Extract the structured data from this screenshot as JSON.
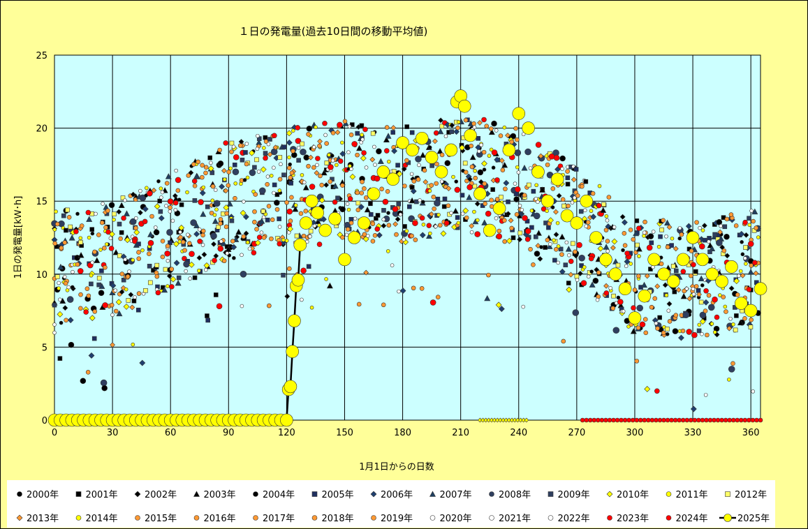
{
  "chart_data": {
    "type": "scatter",
    "title": "１日の発電量(過去10日間の移動平均値)",
    "xlabel": "1月1日からの日数",
    "ylabel": "1日の発電量[kＷ･h]",
    "xlim": [
      0,
      365
    ],
    "ylim": [
      0,
      25
    ],
    "x_ticks": [
      0,
      30,
      60,
      90,
      120,
      150,
      180,
      210,
      240,
      270,
      300,
      330,
      360
    ],
    "y_ticks": [
      0,
      5,
      10,
      15,
      20,
      25
    ],
    "grid": true,
    "plot_background": "#ccffff",
    "page_background": "#ffff99",
    "legend_position": "bottom",
    "series": [
      {
        "name": "2000年",
        "marker": "circle",
        "color": "#000000",
        "size": 4
      },
      {
        "name": "2001年",
        "marker": "square",
        "color": "#000000",
        "size": 3
      },
      {
        "name": "2002年",
        "marker": "diamond",
        "color": "#000000",
        "size": 3
      },
      {
        "name": "2003年",
        "marker": "triangle",
        "color": "#000000",
        "size": 3.5
      },
      {
        "name": "2004年",
        "marker": "circle",
        "color": "#000000",
        "size": 2.5
      },
      {
        "name": "2005年",
        "marker": "square",
        "color": "#1f2f5f",
        "size": 3
      },
      {
        "name": "2006年",
        "marker": "diamond",
        "color": "#1f3f6f",
        "size": 3.5
      },
      {
        "name": "2007年",
        "marker": "triangle",
        "color": "#1f3f5f",
        "size": 3.5
      },
      {
        "name": "2008年",
        "marker": "circle",
        "color": "#2f3f5f",
        "size": 4.5
      },
      {
        "name": "2009年",
        "marker": "square",
        "color": "#2f3f5f",
        "size": 3
      },
      {
        "name": "2010年",
        "marker": "diamond",
        "color": "#ffff00",
        "size": 3.5
      },
      {
        "name": "2011年",
        "marker": "circle",
        "color": "#ffff00",
        "size": 2.5
      },
      {
        "name": "2012年",
        "marker": "square",
        "color": "#ffff66",
        "size": 3
      },
      {
        "name": "2013年",
        "marker": "diamond",
        "color": "#ff9933",
        "size": 3
      },
      {
        "name": "2014年",
        "marker": "circle",
        "color": "#ffff00",
        "size": 2.5
      },
      {
        "name": "2015年",
        "marker": "circle",
        "color": "#ff9933",
        "size": 3
      },
      {
        "name": "2016年",
        "marker": "circle",
        "color": "#ff9933",
        "size": 3
      },
      {
        "name": "2017年",
        "marker": "circle",
        "color": "#ff9933",
        "size": 3
      },
      {
        "name": "2018年",
        "marker": "circle",
        "color": "#ff9933",
        "size": 3
      },
      {
        "name": "2019年",
        "marker": "circle",
        "color": "#ff9933",
        "size": 3
      },
      {
        "name": "2020年",
        "marker": "circle",
        "color": "#ffffff",
        "size": 2.5
      },
      {
        "name": "2021年",
        "marker": "circle",
        "color": "#ffffff",
        "size": 2.5
      },
      {
        "name": "2022年",
        "marker": "circle",
        "color": "#ffffff",
        "size": 2.5
      },
      {
        "name": "2023年",
        "marker": "circle",
        "color": "#ff0000",
        "size": 4
      },
      {
        "name": "2024年",
        "marker": "circle",
        "color": "#ff0000",
        "size": 3.5
      },
      {
        "name": "2025年",
        "marker": "circle",
        "color": "#ffff00",
        "size": 9,
        "line": true,
        "line_color": "#000000",
        "points": [
          [
            0,
            0
          ],
          [
            10,
            0
          ],
          [
            20,
            0
          ],
          [
            30,
            0
          ],
          [
            40,
            0
          ],
          [
            50,
            0
          ],
          [
            60,
            0
          ],
          [
            70,
            0
          ],
          [
            80,
            0
          ],
          [
            90,
            0
          ],
          [
            100,
            0
          ],
          [
            110,
            0
          ],
          [
            120,
            0
          ],
          [
            121,
            2.1
          ],
          [
            122,
            2.3
          ],
          [
            123,
            4.7
          ],
          [
            124,
            6.8
          ],
          [
            125,
            9.2
          ],
          [
            126,
            9.6
          ],
          [
            127,
            12.0
          ],
          [
            130,
            13.5
          ],
          [
            133,
            15.0
          ],
          [
            136,
            14.2
          ],
          [
            140,
            13.0
          ],
          [
            145,
            13.8
          ],
          [
            150,
            11.0
          ],
          [
            155,
            12.5
          ],
          [
            160,
            13.5
          ],
          [
            165,
            15.5
          ],
          [
            170,
            17.0
          ],
          [
            175,
            16.5
          ],
          [
            180,
            19.0
          ],
          [
            185,
            18.5
          ],
          [
            190,
            19.3
          ],
          [
            195,
            18.0
          ],
          [
            200,
            17.0
          ],
          [
            205,
            18.5
          ],
          [
            208,
            21.8
          ],
          [
            210,
            22.2
          ],
          [
            212,
            21.5
          ],
          [
            215,
            19.5
          ],
          [
            220,
            15.5
          ],
          [
            225,
            13.0
          ],
          [
            230,
            14.5
          ],
          [
            235,
            18.5
          ],
          [
            240,
            21.0
          ],
          [
            245,
            20.0
          ],
          [
            250,
            17.0
          ],
          [
            255,
            15.0
          ],
          [
            260,
            16.5
          ],
          [
            265,
            14.0
          ],
          [
            270,
            13.5
          ],
          [
            275,
            15.0
          ],
          [
            280,
            12.5
          ],
          [
            285,
            11.0
          ],
          [
            290,
            10.0
          ],
          [
            295,
            9.0
          ],
          [
            300,
            7.0
          ],
          [
            305,
            8.5
          ],
          [
            310,
            11.0
          ],
          [
            315,
            10.0
          ],
          [
            320,
            9.5
          ],
          [
            325,
            11.0
          ],
          [
            330,
            12.5
          ],
          [
            335,
            11.0
          ],
          [
            340,
            10.0
          ],
          [
            345,
            9.5
          ],
          [
            350,
            10.5
          ],
          [
            355,
            8.0
          ],
          [
            360,
            7.5
          ],
          [
            365,
            9.0
          ]
        ]
      }
    ]
  }
}
